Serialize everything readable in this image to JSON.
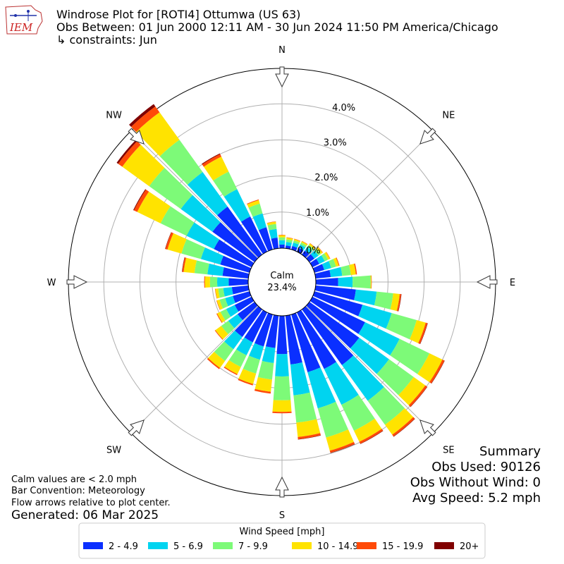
{
  "logo": {
    "text": "IEM"
  },
  "header": {
    "title": "Windrose Plot for [ROTI4] Ottumwa (US 63)",
    "obs_between": "Obs Between: 01 Jun 2000 12:11 AM - 30 Jun 2024 11:50 PM America/Chicago",
    "constraints": "↳ constraints: Jun"
  },
  "notes": {
    "calm_note": "Calm values are < 2.0 mph",
    "bar_convention": "Bar Convention: Meteorology",
    "flow_arrows": "Flow arrows relative to plot center.",
    "generated": "Generated: 06 Mar 2025"
  },
  "summary": {
    "title": "Summary",
    "obs_used": "Obs Used: 90126",
    "obs_without_wind": "Obs Without Wind: 0",
    "avg_speed": "Avg Speed: 5.2 mph"
  },
  "chart_data": {
    "type": "windrose",
    "calm_label": "Calm",
    "calm_value": "23.4%",
    "radial_ticks": [
      "0.0%",
      "1.0%",
      "2.0%",
      "3.0%",
      "4.0%"
    ],
    "radial_tick_values": [
      0,
      1,
      2,
      3,
      4
    ],
    "compass_labels": [
      {
        "name": "N",
        "angle": 0
      },
      {
        "name": "NE",
        "angle": 45
      },
      {
        "name": "E",
        "angle": 90
      },
      {
        "name": "SE",
        "angle": 135
      },
      {
        "name": "S",
        "angle": 180
      },
      {
        "name": "SW",
        "angle": 225
      },
      {
        "name": "W",
        "angle": 270
      },
      {
        "name": "NW",
        "angle": 315
      }
    ],
    "legend": {
      "title": "Wind Speed [mph]",
      "bins": [
        {
          "label": "2 - 4.9",
          "color": "#0a2fff"
        },
        {
          "label": "5 - 6.9",
          "color": "#00d4f0"
        },
        {
          "label": "7 - 9.9",
          "color": "#7dfa78"
        },
        {
          "label": "10 - 14.9",
          "color": "#ffe300"
        },
        {
          "label": "15 - 19.9",
          "color": "#ff4a08"
        },
        {
          "label": "20+",
          "color": "#800000"
        }
      ]
    },
    "sector_width_deg": 10,
    "sectors": [
      {
        "dir": 0,
        "values": [
          0.1,
          0.12,
          0.08,
          0.06,
          0.01,
          0.0
        ]
      },
      {
        "dir": 10,
        "values": [
          0.08,
          0.1,
          0.07,
          0.05,
          0.01,
          0.0
        ]
      },
      {
        "dir": 20,
        "values": [
          0.1,
          0.1,
          0.06,
          0.04,
          0.01,
          0.0
        ]
      },
      {
        "dir": 30,
        "values": [
          0.12,
          0.1,
          0.06,
          0.04,
          0.01,
          0.0
        ]
      },
      {
        "dir": 40,
        "values": [
          0.14,
          0.12,
          0.07,
          0.05,
          0.01,
          0.0
        ]
      },
      {
        "dir": 50,
        "values": [
          0.17,
          0.14,
          0.08,
          0.06,
          0.01,
          0.0
        ]
      },
      {
        "dir": 60,
        "values": [
          0.21,
          0.17,
          0.1,
          0.06,
          0.01,
          0.0
        ]
      },
      {
        "dir": 70,
        "values": [
          0.28,
          0.2,
          0.14,
          0.08,
          0.02,
          0.0
        ]
      },
      {
        "dir": 80,
        "values": [
          0.42,
          0.32,
          0.24,
          0.14,
          0.03,
          0.0
        ]
      },
      {
        "dir": 90,
        "values": [
          0.62,
          0.4,
          0.5,
          0.02,
          0.01,
          0.0
        ]
      },
      {
        "dir": 100,
        "values": [
          1.12,
          0.58,
          0.46,
          0.18,
          0.04,
          0.01
        ]
      },
      {
        "dir": 110,
        "values": [
          1.38,
          0.84,
          0.72,
          0.26,
          0.05,
          0.01
        ]
      },
      {
        "dir": 120,
        "values": [
          1.62,
          1.06,
          0.92,
          0.4,
          0.06,
          0.01
        ]
      },
      {
        "dir": 130,
        "values": [
          1.7,
          1.02,
          0.84,
          0.4,
          0.06,
          0.01
        ]
      },
      {
        "dir": 140,
        "values": [
          1.9,
          1.22,
          0.82,
          0.34,
          0.06,
          0.01
        ]
      },
      {
        "dir": 150,
        "values": [
          1.74,
          1.1,
          0.8,
          0.34,
          0.06,
          0.01
        ]
      },
      {
        "dir": 160,
        "values": [
          1.66,
          1.04,
          0.84,
          0.38,
          0.06,
          0.01
        ]
      },
      {
        "dir": 170,
        "values": [
          1.36,
          0.86,
          0.76,
          0.4,
          0.06,
          0.01
        ]
      },
      {
        "dir": 180,
        "values": [
          1.06,
          0.62,
          0.66,
          0.32,
          0.04,
          0.0
        ]
      },
      {
        "dir": 190,
        "values": [
          0.9,
          0.42,
          0.46,
          0.34,
          0.05,
          0.0
        ]
      },
      {
        "dir": 200,
        "values": [
          0.92,
          0.38,
          0.4,
          0.3,
          0.04,
          0.0
        ]
      },
      {
        "dir": 210,
        "values": [
          0.92,
          0.4,
          0.36,
          0.22,
          0.03,
          0.0
        ]
      },
      {
        "dir": 220,
        "values": [
          0.94,
          0.42,
          0.4,
          0.24,
          0.04,
          0.0
        ]
      },
      {
        "dir": 230,
        "values": [
          0.58,
          0.32,
          0.24,
          0.2,
          0.02,
          0.0
        ]
      },
      {
        "dir": 240,
        "values": [
          0.52,
          0.26,
          0.18,
          0.1,
          0.02,
          0.0
        ]
      },
      {
        "dir": 250,
        "values": [
          0.48,
          0.22,
          0.16,
          0.08,
          0.01,
          0.0
        ]
      },
      {
        "dir": 260,
        "values": [
          0.46,
          0.24,
          0.14,
          0.08,
          0.01,
          0.0
        ]
      },
      {
        "dir": 270,
        "values": [
          0.54,
          0.32,
          0.2,
          0.14,
          0.02,
          0.0
        ]
      },
      {
        "dir": 280,
        "values": [
          0.72,
          0.42,
          0.36,
          0.3,
          0.04,
          0.01
        ]
      },
      {
        "dir": 290,
        "values": [
          0.84,
          0.56,
          0.56,
          0.4,
          0.06,
          0.01
        ]
      },
      {
        "dir": 300,
        "values": [
          1.16,
          0.84,
          0.8,
          0.72,
          0.1,
          0.02
        ]
      },
      {
        "dir": 310,
        "values": [
          1.44,
          1.08,
          1.08,
          0.92,
          0.14,
          0.05
        ]
      },
      {
        "dir": 320,
        "values": [
          1.64,
          1.18,
          1.1,
          0.94,
          0.2,
          0.08
        ]
      },
      {
        "dir": 330,
        "values": [
          1.08,
          0.84,
          0.54,
          0.46,
          0.08,
          0.02
        ]
      },
      {
        "dir": 340,
        "values": [
          0.64,
          0.4,
          0.28,
          0.1,
          0.02,
          0.0
        ]
      },
      {
        "dir": 350,
        "values": [
          0.3,
          0.24,
          0.14,
          0.06,
          0.01,
          0.0
        ]
      }
    ]
  }
}
